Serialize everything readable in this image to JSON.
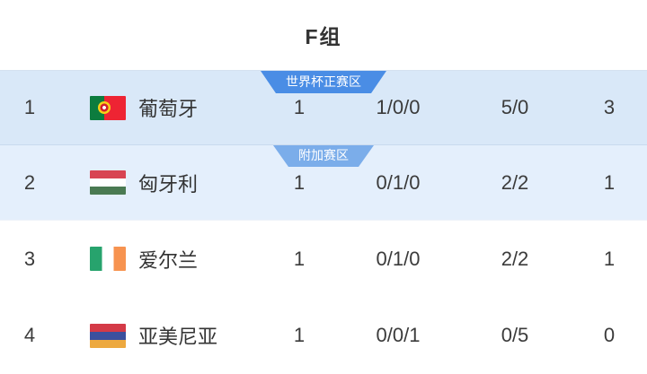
{
  "header": {
    "title": "F组"
  },
  "zones": {
    "world_cup": {
      "label": "世界杯正赛区",
      "color": "#4a8de5"
    },
    "playoff": {
      "label": "附加赛区",
      "color": "#7badea"
    }
  },
  "colors": {
    "row_highlight_primary": "#d9e8f8",
    "row_highlight_secondary": "#e4effc",
    "text": "#333333",
    "badge_text": "#ffffff"
  },
  "table": {
    "rows": [
      {
        "rank": "1",
        "team": "葡萄牙",
        "flag": "portugal",
        "played": "1",
        "record": "1/0/0",
        "goals": "5/0",
        "points": "3",
        "zone": "world_cup",
        "highlight": "primary",
        "height": "h83"
      },
      {
        "rank": "2",
        "team": "匈牙利",
        "flag": "hungary",
        "played": "1",
        "record": "0/1/0",
        "goals": "2/2",
        "points": "1",
        "zone": "playoff",
        "highlight": "secondary",
        "height": "h84"
      },
      {
        "rank": "3",
        "team": "爱尔兰",
        "flag": "ireland",
        "played": "1",
        "record": "0/1/0",
        "goals": "2/2",
        "points": "1",
        "zone": null,
        "highlight": null,
        "height": ""
      },
      {
        "rank": "4",
        "team": "亚美尼亚",
        "flag": "armenia",
        "played": "1",
        "record": "0/0/1",
        "goals": "0/5",
        "points": "0",
        "zone": null,
        "highlight": null,
        "height": ""
      }
    ]
  }
}
